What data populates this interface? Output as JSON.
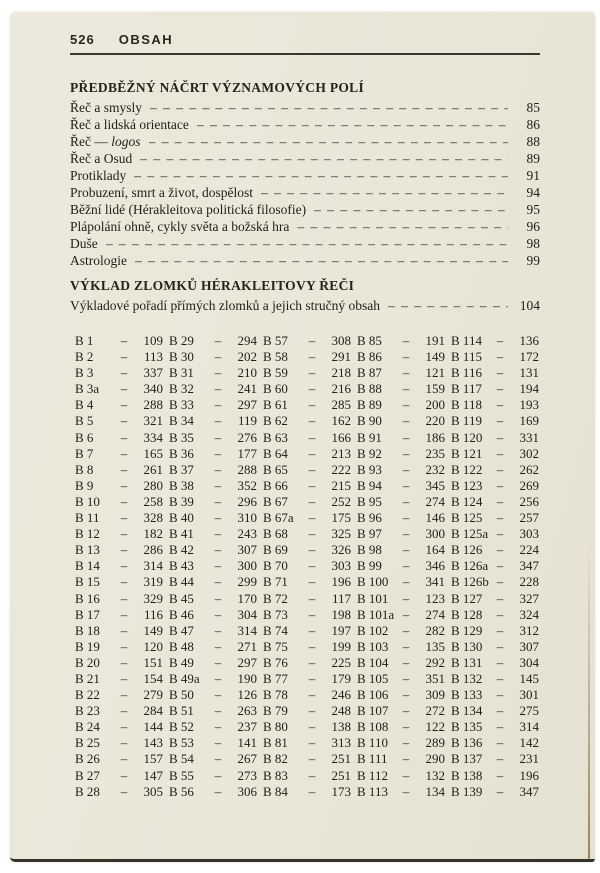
{
  "header": {
    "page_number": "526",
    "running_title": "OBSAH"
  },
  "leader_char": "–",
  "sections": [
    {
      "title": "PŘEDBĚŽNÝ NÁČRT VÝZNAMOVÝCH POLÍ",
      "items": [
        {
          "label": "Řeč a smysly",
          "em": "",
          "page": "85"
        },
        {
          "label": "Řeč a lidská orientace",
          "em": "",
          "page": "86"
        },
        {
          "label": "Řeč —",
          "em": "logos",
          "page": "88"
        },
        {
          "label": "Řeč a Osud",
          "em": "",
          "page": "89"
        },
        {
          "label": "Protiklady",
          "em": "",
          "page": "91"
        },
        {
          "label": "Probuzení, smrt a život, dospělost",
          "em": "",
          "page": "94"
        },
        {
          "label": "Běžní lidé (Hérakleitova politická filosofie)",
          "em": "",
          "page": "95"
        },
        {
          "label": "Plápolání ohně, cykly světa a božská hra",
          "em": "",
          "page": "96"
        },
        {
          "label": "Duše",
          "em": "",
          "page": "98"
        },
        {
          "label": "Astrologie",
          "em": "",
          "page": "99"
        }
      ]
    },
    {
      "title": "VÝKLAD ZLOMKŮ HÉRAKLEITOVY ŘEČI",
      "items": [
        {
          "label": "Výkladové pořadí přímých zlomků a jejich stručný obsah",
          "em": "",
          "page": "104"
        }
      ]
    }
  ],
  "fragment_table": {
    "columns": [
      [
        {
          "f": "B 1",
          "p": "109"
        },
        {
          "f": "B 2",
          "p": "113"
        },
        {
          "f": "B 3",
          "p": "337"
        },
        {
          "f": "B 3a",
          "p": "340"
        },
        {
          "f": "B 4",
          "p": "288"
        },
        {
          "f": "B 5",
          "p": "321"
        },
        {
          "f": "B 6",
          "p": "334"
        },
        {
          "f": "B 7",
          "p": "165"
        },
        {
          "f": "B 8",
          "p": "261"
        },
        {
          "f": "B 9",
          "p": "280"
        },
        {
          "f": "B 10",
          "p": "258"
        },
        {
          "f": "B 11",
          "p": "328"
        },
        {
          "f": "B 12",
          "p": "182"
        },
        {
          "f": "B 13",
          "p": "286"
        },
        {
          "f": "B 14",
          "p": "314"
        },
        {
          "f": "B 15",
          "p": "319"
        },
        {
          "f": "B 16",
          "p": "329"
        },
        {
          "f": "B 17",
          "p": "116"
        },
        {
          "f": "B 18",
          "p": "149"
        },
        {
          "f": "B 19",
          "p": "120"
        },
        {
          "f": "B 20",
          "p": "151"
        },
        {
          "f": "B 21",
          "p": "154"
        },
        {
          "f": "B 22",
          "p": "279"
        },
        {
          "f": "B 23",
          "p": "284"
        },
        {
          "f": "B 24",
          "p": "144"
        },
        {
          "f": "B 25",
          "p": "143"
        },
        {
          "f": "B 26",
          "p": "157"
        },
        {
          "f": "B 27",
          "p": "147"
        },
        {
          "f": "B 28",
          "p": "305"
        }
      ],
      [
        {
          "f": "B 29",
          "p": "294"
        },
        {
          "f": "B 30",
          "p": "202"
        },
        {
          "f": "B 31",
          "p": "210"
        },
        {
          "f": "B 32",
          "p": "241"
        },
        {
          "f": "B 33",
          "p": "297"
        },
        {
          "f": "B 34",
          "p": "119"
        },
        {
          "f": "B 35",
          "p": "276"
        },
        {
          "f": "B 36",
          "p": "177"
        },
        {
          "f": "B 37",
          "p": "288"
        },
        {
          "f": "B 38",
          "p": "352"
        },
        {
          "f": "B 39",
          "p": "296"
        },
        {
          "f": "B 40",
          "p": "310"
        },
        {
          "f": "B 41",
          "p": "243"
        },
        {
          "f": "B 42",
          "p": "307"
        },
        {
          "f": "B 43",
          "p": "300"
        },
        {
          "f": "B 44",
          "p": "299"
        },
        {
          "f": "B 45",
          "p": "170"
        },
        {
          "f": "B 46",
          "p": "304"
        },
        {
          "f": "B 47",
          "p": "314"
        },
        {
          "f": "B 48",
          "p": "271"
        },
        {
          "f": "B 49",
          "p": "297"
        },
        {
          "f": "B 49a",
          "p": "190"
        },
        {
          "f": "B 50",
          "p": "126"
        },
        {
          "f": "B 51",
          "p": "263"
        },
        {
          "f": "B 52",
          "p": "237"
        },
        {
          "f": "B 53",
          "p": "141"
        },
        {
          "f": "B 54",
          "p": "267"
        },
        {
          "f": "B 55",
          "p": "273"
        },
        {
          "f": "B 56",
          "p": "306"
        }
      ],
      [
        {
          "f": "B 57",
          "p": "308"
        },
        {
          "f": "B 58",
          "p": "291"
        },
        {
          "f": "B 59",
          "p": "218"
        },
        {
          "f": "B 60",
          "p": "216"
        },
        {
          "f": "B 61",
          "p": "285"
        },
        {
          "f": "B 62",
          "p": "162"
        },
        {
          "f": "B 63",
          "p": "166"
        },
        {
          "f": "B 64",
          "p": "213"
        },
        {
          "f": "B 65",
          "p": "222"
        },
        {
          "f": "B 66",
          "p": "215"
        },
        {
          "f": "B 67",
          "p": "252"
        },
        {
          "f": "B 67a",
          "p": "175"
        },
        {
          "f": "B 68",
          "p": "325"
        },
        {
          "f": "B 69",
          "p": "326"
        },
        {
          "f": "B 70",
          "p": "303"
        },
        {
          "f": "B 71",
          "p": "196"
        },
        {
          "f": "B 72",
          "p": "117"
        },
        {
          "f": "B 73",
          "p": "198"
        },
        {
          "f": "B 74",
          "p": "197"
        },
        {
          "f": "B 75",
          "p": "199"
        },
        {
          "f": "B 76",
          "p": "225"
        },
        {
          "f": "B 77",
          "p": "179"
        },
        {
          "f": "B 78",
          "p": "246"
        },
        {
          "f": "B 79",
          "p": "248"
        },
        {
          "f": "B 80",
          "p": "138"
        },
        {
          "f": "B 81",
          "p": "313"
        },
        {
          "f": "B 82",
          "p": "251"
        },
        {
          "f": "B 83",
          "p": "251"
        },
        {
          "f": "B 84",
          "p": "173"
        }
      ],
      [
        {
          "f": "B 85",
          "p": "191"
        },
        {
          "f": "B 86",
          "p": "149"
        },
        {
          "f": "B 87",
          "p": "121"
        },
        {
          "f": "B 88",
          "p": "159"
        },
        {
          "f": "B 89",
          "p": "200"
        },
        {
          "f": "B 90",
          "p": "220"
        },
        {
          "f": "B 91",
          "p": "186"
        },
        {
          "f": "B 92",
          "p": "235"
        },
        {
          "f": "B 93",
          "p": "232"
        },
        {
          "f": "B 94",
          "p": "345"
        },
        {
          "f": "B 95",
          "p": "274"
        },
        {
          "f": "B 96",
          "p": "146"
        },
        {
          "f": "B 97",
          "p": "300"
        },
        {
          "f": "B 98",
          "p": "164"
        },
        {
          "f": "B 99",
          "p": "346"
        },
        {
          "f": "B 100",
          "p": "341"
        },
        {
          "f": "B 101",
          "p": "123"
        },
        {
          "f": "B 101a",
          "p": "274"
        },
        {
          "f": "B 102",
          "p": "282"
        },
        {
          "f": "B 103",
          "p": "135"
        },
        {
          "f": "B 104",
          "p": "292"
        },
        {
          "f": "B 105",
          "p": "351"
        },
        {
          "f": "B 106",
          "p": "309"
        },
        {
          "f": "B 107",
          "p": "272"
        },
        {
          "f": "B 108",
          "p": "122"
        },
        {
          "f": "B 110",
          "p": "289"
        },
        {
          "f": "B 111",
          "p": "290"
        },
        {
          "f": "B 112",
          "p": "132"
        },
        {
          "f": "B 113",
          "p": "134"
        }
      ],
      [
        {
          "f": "B 114",
          "p": "136"
        },
        {
          "f": "B 115",
          "p": "172"
        },
        {
          "f": "B 116",
          "p": "131"
        },
        {
          "f": "B 117",
          "p": "194"
        },
        {
          "f": "B 118",
          "p": "193"
        },
        {
          "f": "B 119",
          "p": "169"
        },
        {
          "f": "B 120",
          "p": "331"
        },
        {
          "f": "B 121",
          "p": "302"
        },
        {
          "f": "B 122",
          "p": "262"
        },
        {
          "f": "B 123",
          "p": "269"
        },
        {
          "f": "B 124",
          "p": "256"
        },
        {
          "f": "B 125",
          "p": "257"
        },
        {
          "f": "B 125a",
          "p": "303"
        },
        {
          "f": "B 126",
          "p": "224"
        },
        {
          "f": "B 126a",
          "p": "347"
        },
        {
          "f": "B 126b",
          "p": "228"
        },
        {
          "f": "B 127",
          "p": "327"
        },
        {
          "f": "B 128",
          "p": "324"
        },
        {
          "f": "B 129",
          "p": "312"
        },
        {
          "f": "B 130",
          "p": "307"
        },
        {
          "f": "B 131",
          "p": "304"
        },
        {
          "f": "B 132",
          "p": "145"
        },
        {
          "f": "B 133",
          "p": "301"
        },
        {
          "f": "B 134",
          "p": "275"
        },
        {
          "f": "B 135",
          "p": "314"
        },
        {
          "f": "B 136",
          "p": "142"
        },
        {
          "f": "B 137",
          "p": "231"
        },
        {
          "f": "B 138",
          "p": "196"
        },
        {
          "f": "B 139",
          "p": "347"
        }
      ]
    ]
  }
}
